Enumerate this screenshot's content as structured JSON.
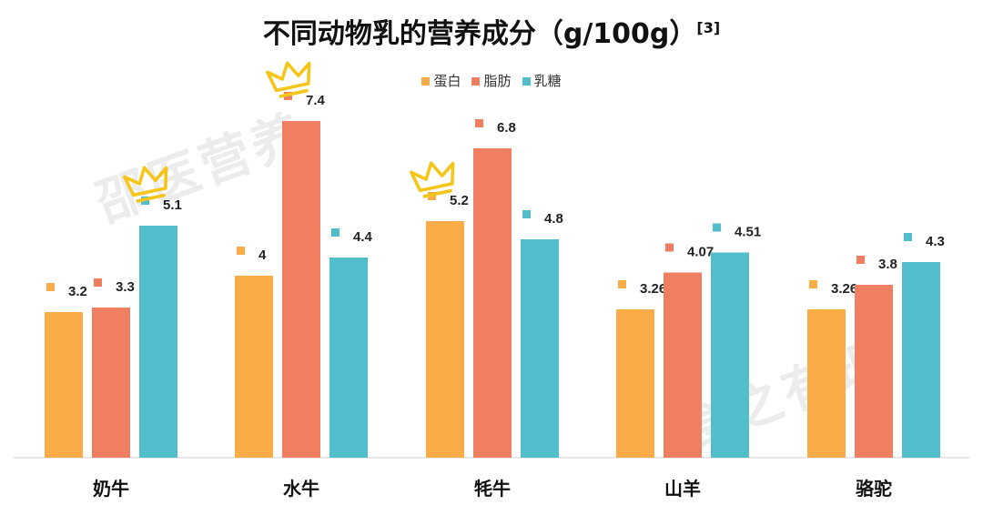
{
  "chart_data": {
    "type": "bar",
    "title": "不同动物乳的营养成分（g/100g）",
    "title_ref": "[3]",
    "categories": [
      "奶牛",
      "水牛",
      "牦牛",
      "山羊",
      "骆驼"
    ],
    "series": [
      {
        "name": "蛋白",
        "color": "#F9AC47",
        "values": [
          3.2,
          4,
          5.2,
          3.26,
          3.26
        ]
      },
      {
        "name": "脂肪",
        "color": "#F07F62",
        "values": [
          3.3,
          7.4,
          6.8,
          4.07,
          3.8
        ]
      },
      {
        "name": "乳糖",
        "color": "#52BECC",
        "values": [
          5.1,
          4.4,
          4.8,
          4.51,
          4.3
        ]
      }
    ],
    "ylim": [
      0,
      7.4
    ],
    "legend": "top-center",
    "grid": false,
    "annotations": [
      "crown-icon over 奶牛 乳糖",
      "crown-icon over 水牛 脂肪",
      "crown-icon over 牦牛 蛋白"
    ]
  },
  "watermarks": [
    "邵医营养",
    "食之有理"
  ]
}
